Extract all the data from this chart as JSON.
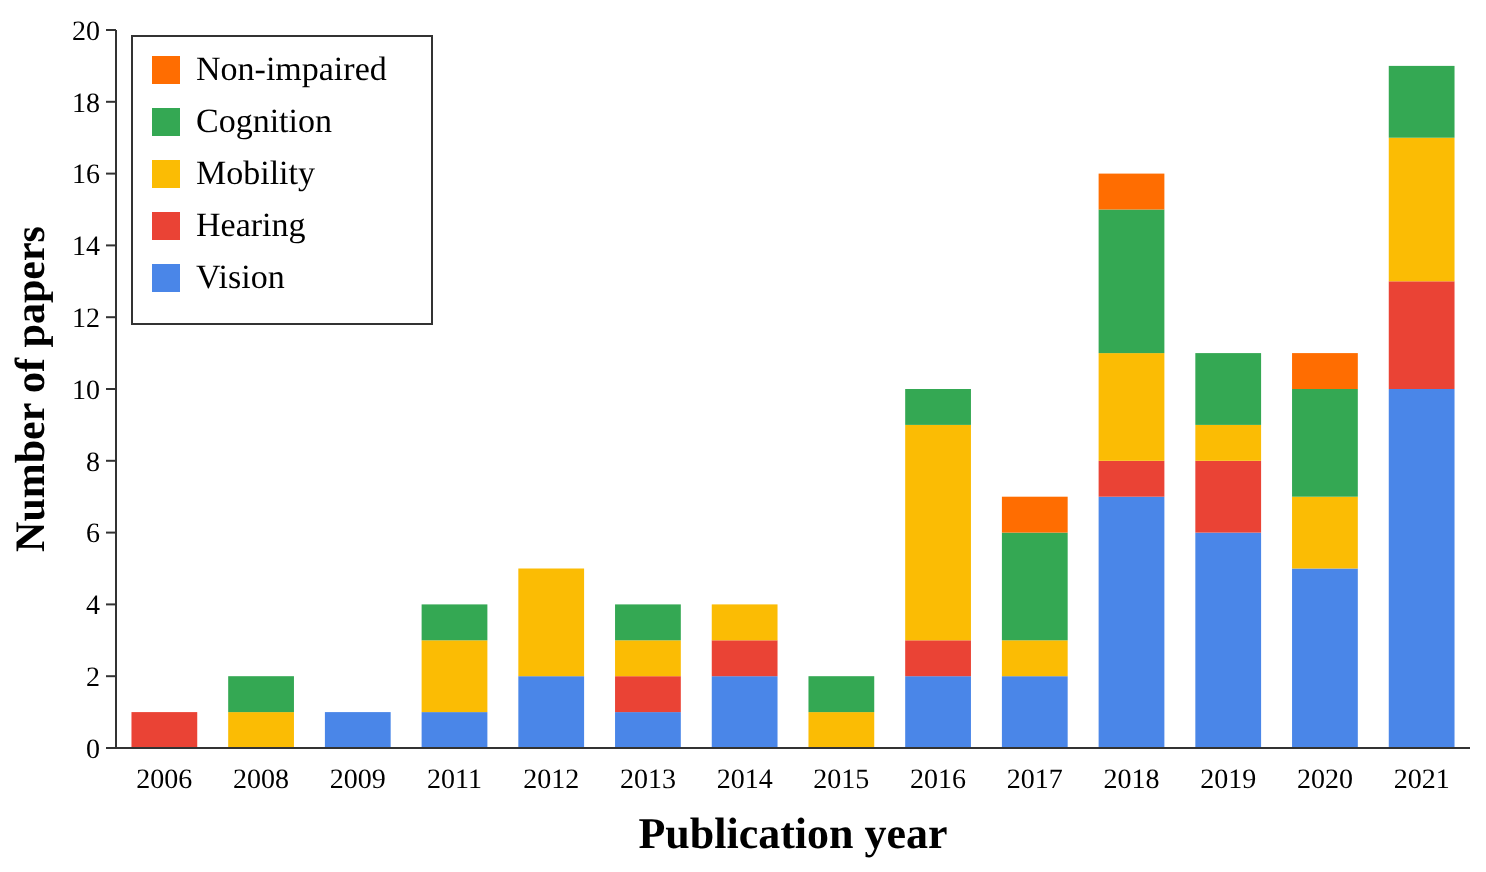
{
  "chart_data": {
    "type": "bar",
    "stacked": true,
    "xlabel": "Publication year",
    "ylabel": "Number of papers",
    "categories": [
      "2006",
      "2008",
      "2009",
      "2011",
      "2012",
      "2013",
      "2014",
      "2015",
      "2016",
      "2017",
      "2018",
      "2019",
      "2020",
      "2021"
    ],
    "series": [
      {
        "name": "Vision",
        "color": "#4a86e8",
        "values": [
          0,
          0,
          1,
          1,
          2,
          1,
          2,
          0,
          2,
          2,
          7,
          6,
          5,
          10
        ]
      },
      {
        "name": "Hearing",
        "color": "#ea4335",
        "values": [
          1,
          0,
          0,
          0,
          0,
          1,
          1,
          0,
          1,
          0,
          1,
          2,
          0,
          3
        ]
      },
      {
        "name": "Mobility",
        "color": "#fbbc04",
        "values": [
          0,
          1,
          0,
          2,
          3,
          1,
          1,
          1,
          6,
          1,
          3,
          1,
          2,
          4
        ]
      },
      {
        "name": "Cognition",
        "color": "#34a853",
        "values": [
          0,
          1,
          0,
          1,
          0,
          1,
          0,
          1,
          1,
          3,
          4,
          2,
          3,
          2
        ]
      },
      {
        "name": "Non-impaired",
        "color": "#ff6d01",
        "values": [
          0,
          0,
          0,
          0,
          0,
          0,
          0,
          0,
          0,
          1,
          1,
          0,
          1,
          0
        ]
      }
    ],
    "ylim": [
      0,
      20
    ],
    "yticks": [
      0,
      2,
      4,
      6,
      8,
      10,
      12,
      14,
      16,
      18,
      20
    ],
    "legend": "top left",
    "grid": false
  }
}
